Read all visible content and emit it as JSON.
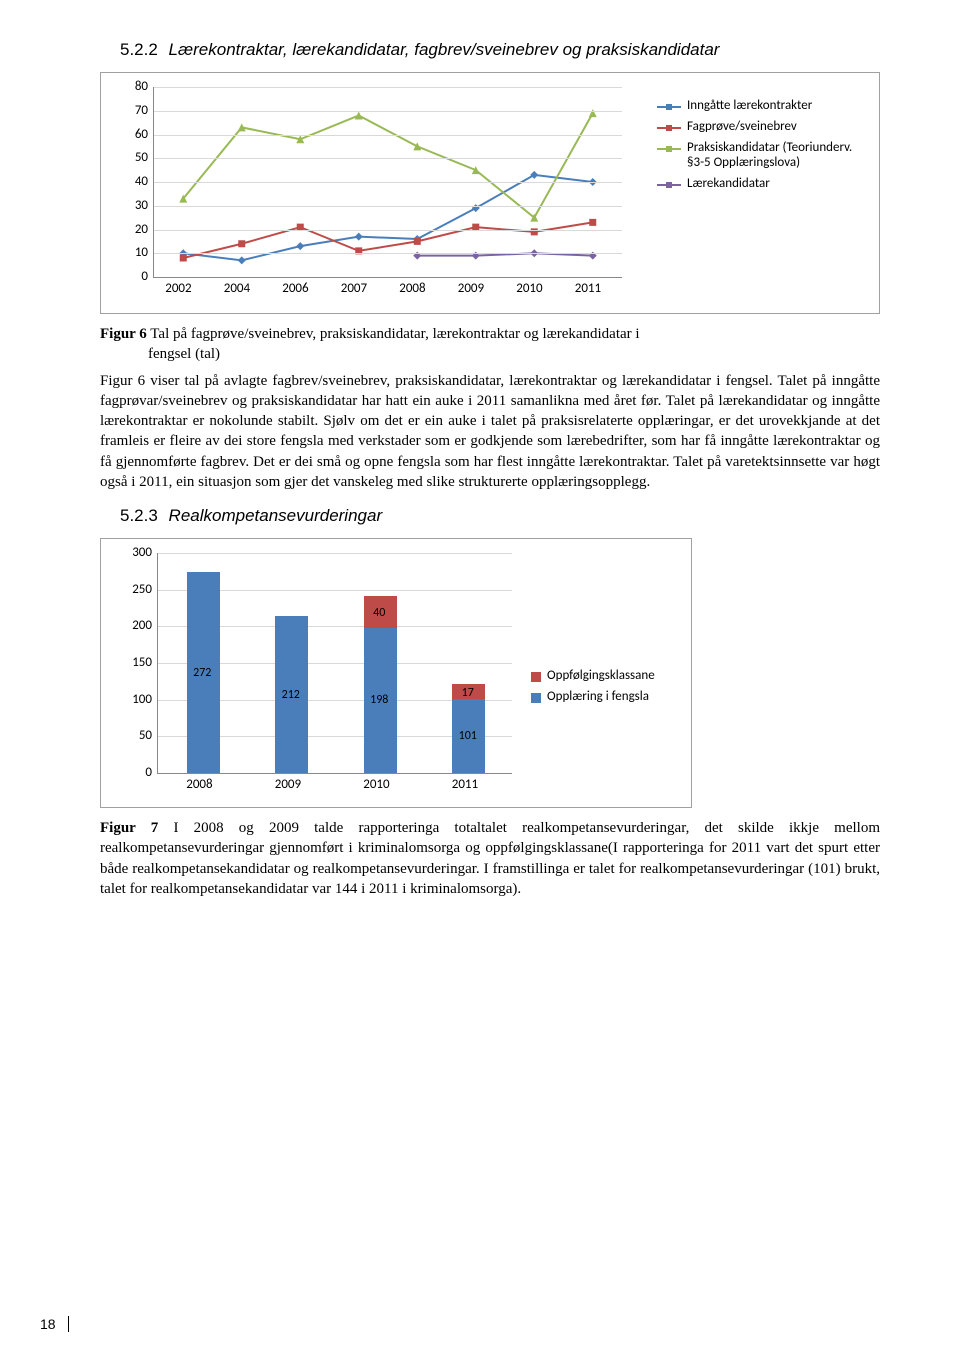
{
  "section1": {
    "number": "5.2.2",
    "title": "Lærekontraktar, lærekandidatar, fagbrev/sveinebrev og praksiskandidatar"
  },
  "chart1": {
    "type": "line",
    "categories": [
      "2002",
      "2004",
      "2006",
      "2007",
      "2008",
      "2009",
      "2010",
      "2011"
    ],
    "ylim": [
      0,
      80
    ],
    "ytick_step": 10,
    "background_color": "#ffffff",
    "grid_color": "#d9d9d9",
    "axis_color": "#888888",
    "label_fontsize": 13,
    "series": [
      {
        "name": "Inngåtte lærekontrakter",
        "color": "#4a7ebb",
        "marker": "diamond",
        "values": [
          10,
          7,
          13,
          17,
          16,
          29,
          43,
          40
        ]
      },
      {
        "name": "Fagprøve/sveinebrev",
        "color": "#be4b48",
        "marker": "square",
        "values": [
          8,
          14,
          21,
          11,
          15,
          21,
          19,
          23
        ]
      },
      {
        "name": "Praksiskandidatar (Teoriunderv. §3-5 Opplæringslova)",
        "color": "#98b954",
        "marker": "triangle",
        "values": [
          33,
          63,
          58,
          68,
          55,
          45,
          25,
          69
        ]
      },
      {
        "name": "Lærekandidatar",
        "color": "#7a63a0",
        "marker": "diamond",
        "values": [
          null,
          null,
          null,
          null,
          9,
          9,
          10,
          9
        ]
      }
    ],
    "legend_position": "right"
  },
  "figure6": {
    "label": "Figur 6",
    "caption_line1": "Tal på fagprøve/sveinebrev, praksiskandidatar, lærekontraktar og lærekandidatar i",
    "caption_line2": "fengsel (tal)"
  },
  "paragraph1": "Figur 6 viser tal på avlagte fagbrev/sveinebrev, praksiskandidatar, lærekontraktar og lærekandidatar i fengsel. Talet på inngåtte fagprøvar/sveinebrev og praksiskandidatar har hatt ein auke i 2011 samanlikna med året før. Talet på lærekandidatar og inngåtte lærekontraktar er nokolunde stabilt. Sjølv om det er ein auke i talet på praksisrelaterte opplæringar, er det urovekkjande at det framleis er fleire av dei store fengsla med verkstader som er godkjende som lærebedrifter, som har få inngåtte lærekontraktar og få gjennomførte fagbrev. Det er dei små og opne fengsla som har flest inngåtte lærekontraktar. Talet på varetektsinnsette var høgt også i 2011, ein situasjon som gjer det vanskeleg med slike strukturerte opplæringsopplegg.",
  "section2": {
    "number": "5.2.3",
    "title": "Realkompetansevurderingar"
  },
  "chart2": {
    "type": "bar_stacked",
    "categories": [
      "2008",
      "2009",
      "2010",
      "2011"
    ],
    "ylim": [
      0,
      300
    ],
    "ytick_step": 50,
    "background_color": "#ffffff",
    "grid_color": "#d9d9d9",
    "axis_color": "#888888",
    "label_fontsize": 13,
    "bar_width_ratio": 0.35,
    "series": [
      {
        "name": "Opplæring i fengsla",
        "color": "#4a7ebb",
        "values": [
          272,
          212,
          198,
          101
        ]
      },
      {
        "name": "Oppfølgingsklassane",
        "color": "#be4b48",
        "values": [
          0,
          0,
          40,
          17
        ]
      }
    ],
    "legend_position": "right"
  },
  "figure7": {
    "label": "Figur 7",
    "caption": "I 2008 og 2009 talde rapporteringa totaltalet realkompetansevurderingar, det skilde ikkje mellom realkompetansevurderingar gjennomført i kriminalomsorga og oppfølgingsklassane(I rapporteringa for 2011 vart det spurt etter både realkompetansekandidatar og realkompetansevurderingar. I framstillinga er talet for realkompetansevurderingar (101) brukt, talet for realkompetansekandidatar var 144 i 2011 i kriminalomsorga)."
  },
  "page_number": "18"
}
